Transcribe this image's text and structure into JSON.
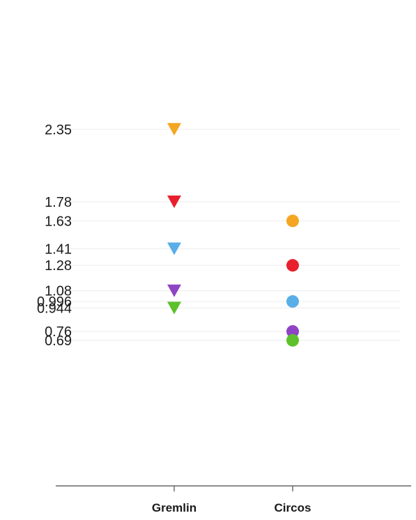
{
  "chart_data": {
    "type": "scatter",
    "title": "",
    "xlabel": "",
    "ylabel": "",
    "categories": [
      "Gremlin",
      "Circos"
    ],
    "series": [
      {
        "name": "Gremlin",
        "marker": "triangle-down",
        "points": [
          {
            "value": 2.35,
            "label": "2.35",
            "color": "#f4a623"
          },
          {
            "value": 1.78,
            "label": "1.78",
            "color": "#e8202e"
          },
          {
            "value": 1.41,
            "label": "1.41",
            "color": "#5aaee8"
          },
          {
            "value": 1.08,
            "label": "1.08",
            "color": "#8e44c4"
          },
          {
            "value": 0.944,
            "label": "0.944",
            "color": "#5cc12b"
          }
        ]
      },
      {
        "name": "Circos",
        "marker": "circle",
        "points": [
          {
            "value": 1.63,
            "label": "1.63",
            "color": "#f4a623"
          },
          {
            "value": 1.28,
            "label": "1.28",
            "color": "#e8202e"
          },
          {
            "value": 0.996,
            "label": "0.996",
            "color": "#5aaee8"
          },
          {
            "value": 0.76,
            "label": "0.76",
            "color": "#8e44c4"
          },
          {
            "value": 0.69,
            "label": "0.69",
            "color": "#5cc12b"
          }
        ]
      }
    ],
    "grid": true,
    "legend": "none"
  }
}
